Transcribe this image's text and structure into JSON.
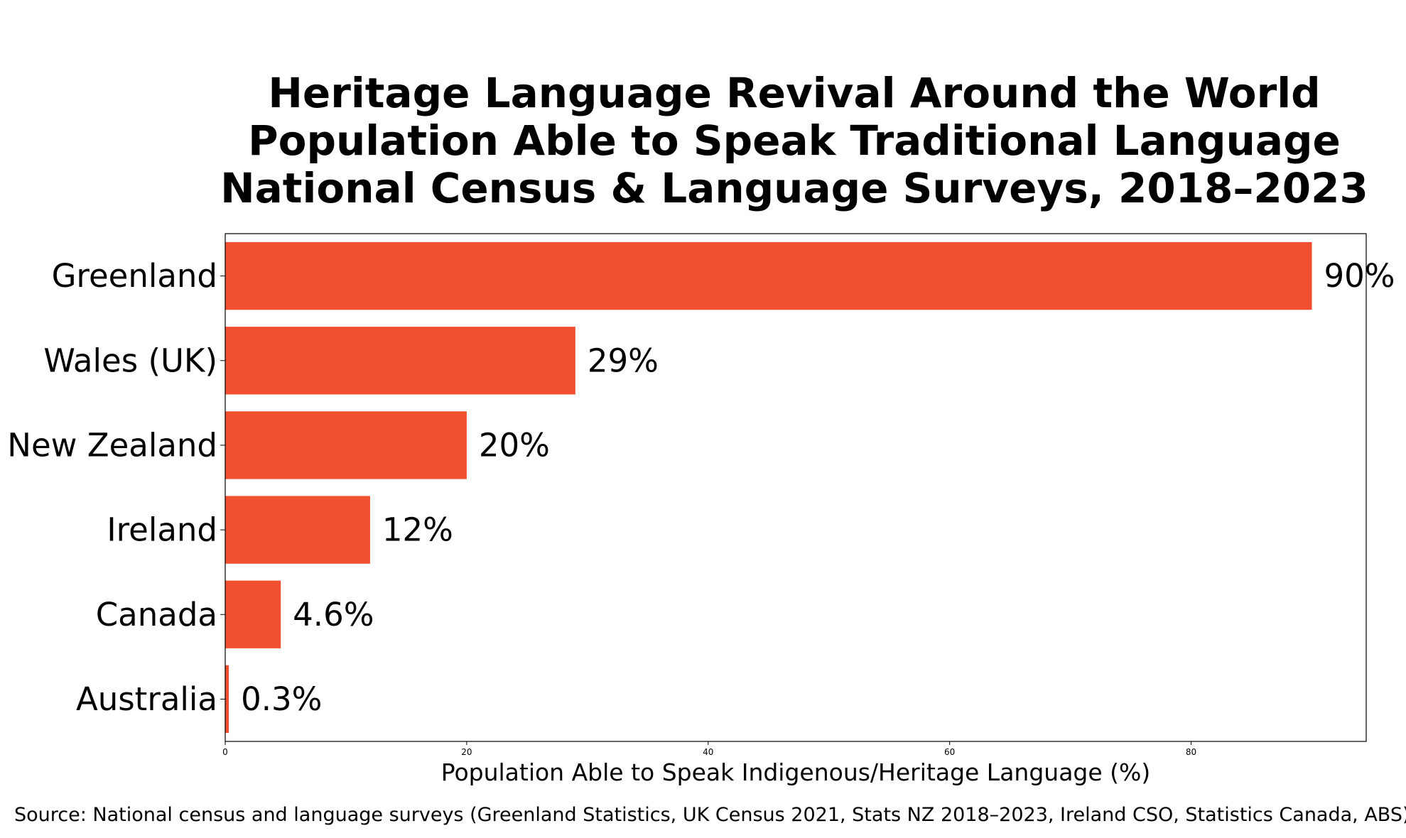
{
  "chart_data": {
    "type": "bar",
    "orientation": "horizontal",
    "title_lines": [
      "Heritage Language Revival Around the World",
      "Population Able to Speak Traditional Language",
      "National Census & Language Surveys, 2018–2023"
    ],
    "categories": [
      "Greenland",
      "Wales (UK)",
      "New Zealand",
      "Ireland",
      "Canada",
      "Australia"
    ],
    "values": [
      90,
      29,
      20,
      12,
      4.6,
      0.3
    ],
    "data_labels": [
      "90%",
      "29%",
      "20%",
      "12%",
      "4.6%",
      "0.3%"
    ],
    "xlabel": "Population Able to Speak Indigenous/Heritage Language (%)",
    "xlim": [
      0,
      94.5
    ],
    "xticks": [
      0,
      20,
      40,
      60,
      80
    ],
    "xtick_labels": [
      "0",
      "20",
      "40",
      "60",
      "80"
    ],
    "bar_color": "#f24f30",
    "grid": false,
    "source": "Source: National census and language surveys (Greenland Statistics, UK Census 2021, Stats NZ 2018–2023, Ireland CSO, Statistics Canada, ABS)"
  }
}
